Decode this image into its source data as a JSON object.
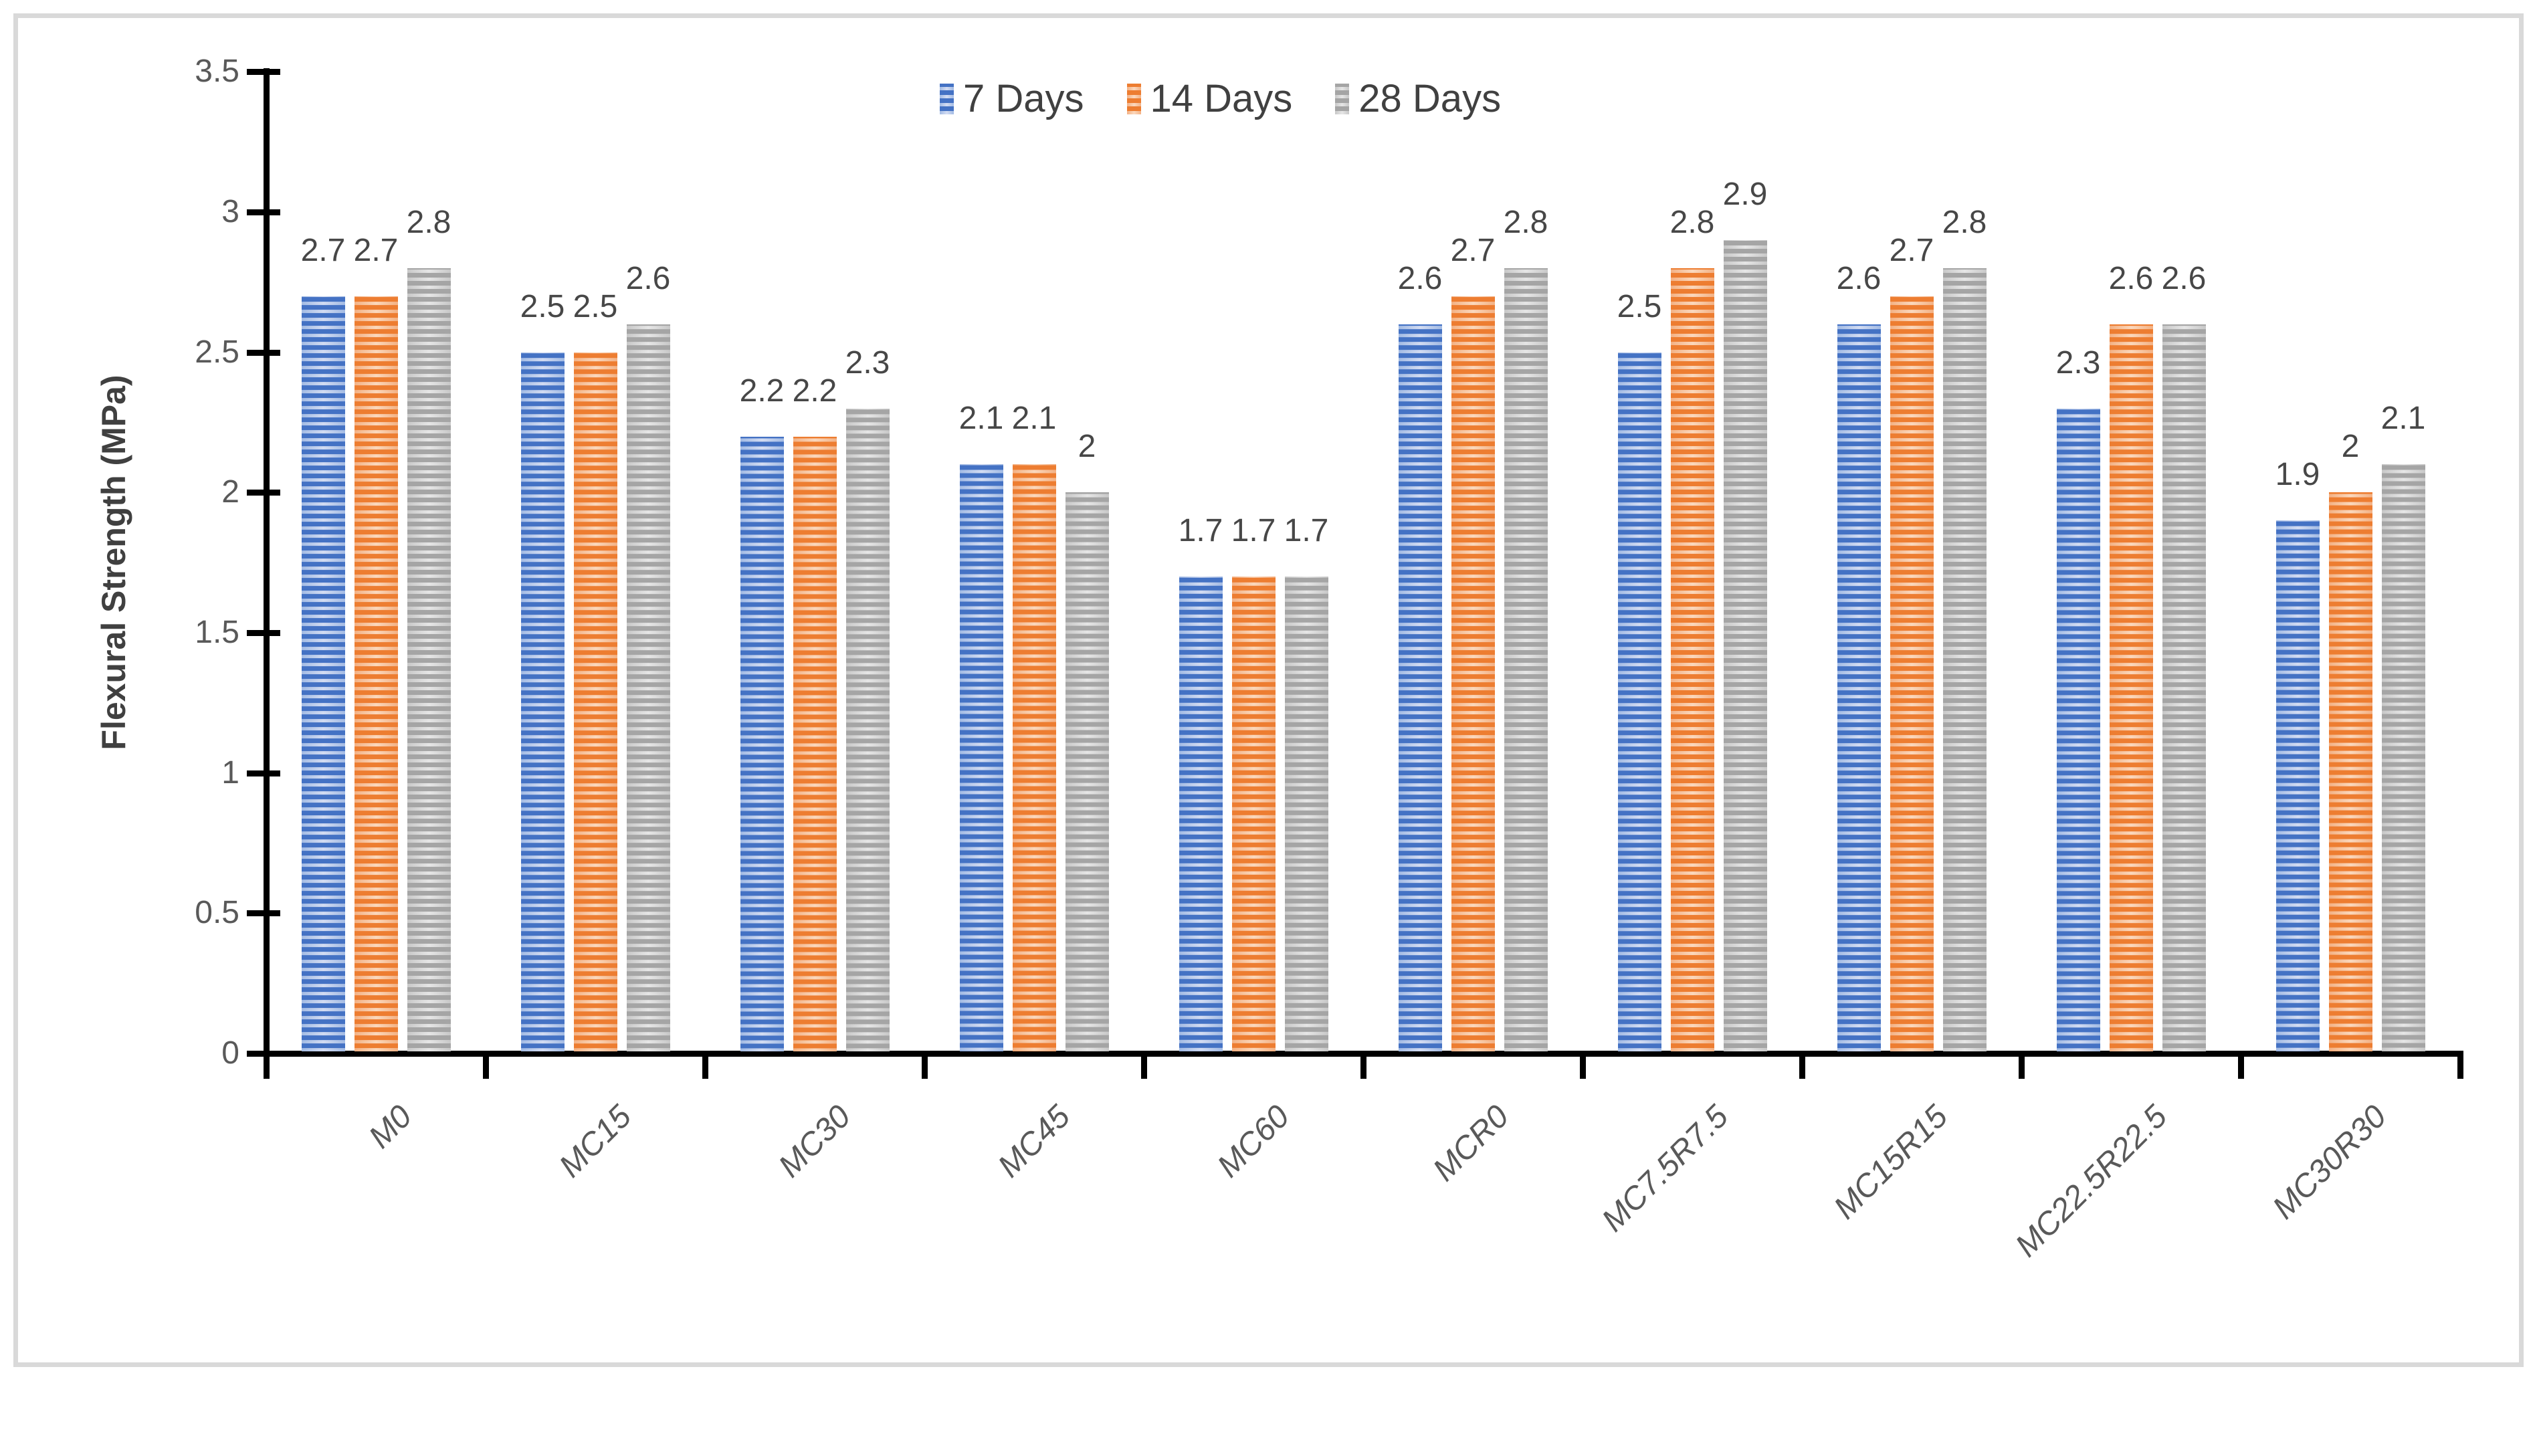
{
  "chart_data": {
    "type": "bar",
    "title": "",
    "xlabel": "",
    "ylabel": "Flexural Strength (MPa)",
    "ylim": [
      0,
      3.5
    ],
    "yticks": [
      "0",
      "0.5",
      "1",
      "1.5",
      "2",
      "2.5",
      "3",
      "3.5"
    ],
    "grid": false,
    "legend_position": "top-center",
    "bar_pattern": "horizontal-stripes",
    "categories": [
      "M0",
      "MC15",
      "MC30",
      "MC45",
      "MC60",
      "MCR0",
      "MC7.5R7.5",
      "MC15R15",
      "MC22.5R22.5",
      "MC30R30"
    ],
    "series": [
      {
        "name": "7 Days",
        "color": "#4472C4",
        "color_light": "#a3bbe4",
        "color_lighter": "#d3dcf2",
        "values": [
          2.7,
          2.5,
          2.2,
          2.1,
          1.7,
          2.6,
          2.5,
          2.6,
          2.3,
          1.9
        ],
        "labels": [
          "2.7",
          "2.5",
          "2.2",
          "2.1",
          "1.7",
          "2.6",
          "2.5",
          "2.6",
          "2.3",
          "1.9"
        ]
      },
      {
        "name": "14 Days",
        "color": "#ED7D31",
        "color_light": "#f3b184",
        "color_lighter": "#fbd8bd",
        "values": [
          2.7,
          2.5,
          2.2,
          2.1,
          1.7,
          2.7,
          2.8,
          2.7,
          2.6,
          2.0
        ],
        "labels": [
          "2.7",
          "2.5",
          "2.2",
          "2.1",
          "1.7",
          "2.7",
          "2.8",
          "2.7",
          "2.6",
          "2"
        ]
      },
      {
        "name": "28 Days",
        "color": "#A5A5A5",
        "color_light": "#c8c8c8",
        "color_lighter": "#e6e6e6",
        "values": [
          2.8,
          2.6,
          2.3,
          2.0,
          1.7,
          2.8,
          2.9,
          2.8,
          2.6,
          2.1
        ],
        "labels": [
          "2.8",
          "2.6",
          "2.3",
          "2",
          "1.7",
          "2.8",
          "2.9",
          "2.8",
          "2.6",
          "2.1"
        ]
      }
    ],
    "axis_colors": {
      "axis_line": "#000000",
      "tick_label": "#595959",
      "data_label": "#474747",
      "frame_border": "#D9D9D9"
    }
  }
}
